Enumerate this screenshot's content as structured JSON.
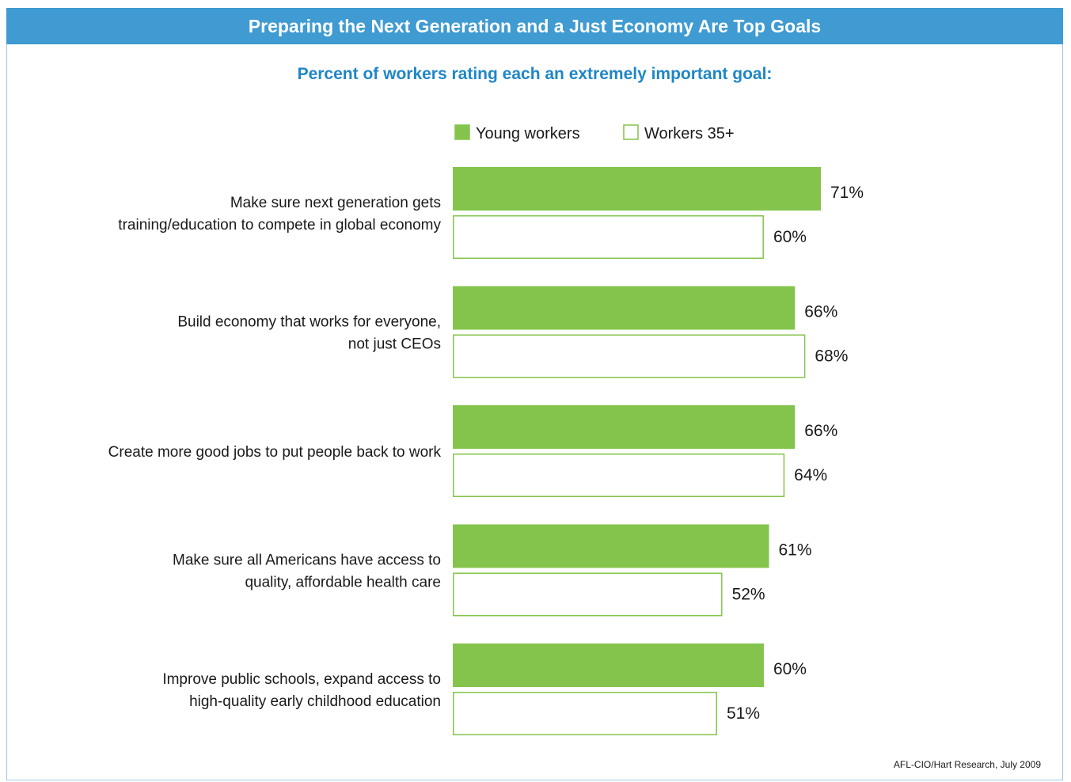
{
  "title": "Preparing the Next Generation and a Just Economy Are Top Goals",
  "subtitle": "Percent of workers rating each an extremely important goal:",
  "source": "AFL-CIO/Hart Research, July 2009",
  "colors": {
    "header": "#3f9bd1",
    "subtitle": "#1f86c7",
    "young": "#84c44c",
    "older_border": "#84c44c",
    "older_fill": "#ffffff"
  },
  "chart_data": {
    "type": "bar",
    "orientation": "horizontal",
    "title": "Percent of workers rating each an extremely important goal:",
    "categories": [
      [
        "Make sure next generation gets",
        "training/education to compete in global economy"
      ],
      [
        "Build economy that works for everyone,",
        "not just CEOs"
      ],
      [
        "Create more good jobs to put people back to work"
      ],
      [
        "Make sure all Americans have access to",
        "quality, affordable health care"
      ],
      [
        "Improve public schools, expand access to",
        "high-quality early childhood education"
      ]
    ],
    "series": [
      {
        "name": "Young workers",
        "values": [
          71,
          66,
          66,
          61,
          60
        ],
        "labels": [
          "71%",
          "66%",
          "66%",
          "61%",
          "60%"
        ]
      },
      {
        "name": "Workers 35+",
        "values": [
          60,
          68,
          64,
          52,
          51
        ],
        "labels": [
          "60%",
          "68%",
          "64%",
          "52%",
          "51%"
        ]
      }
    ],
    "xlim": [
      0,
      100
    ],
    "legend_position": "top",
    "grid": false
  }
}
